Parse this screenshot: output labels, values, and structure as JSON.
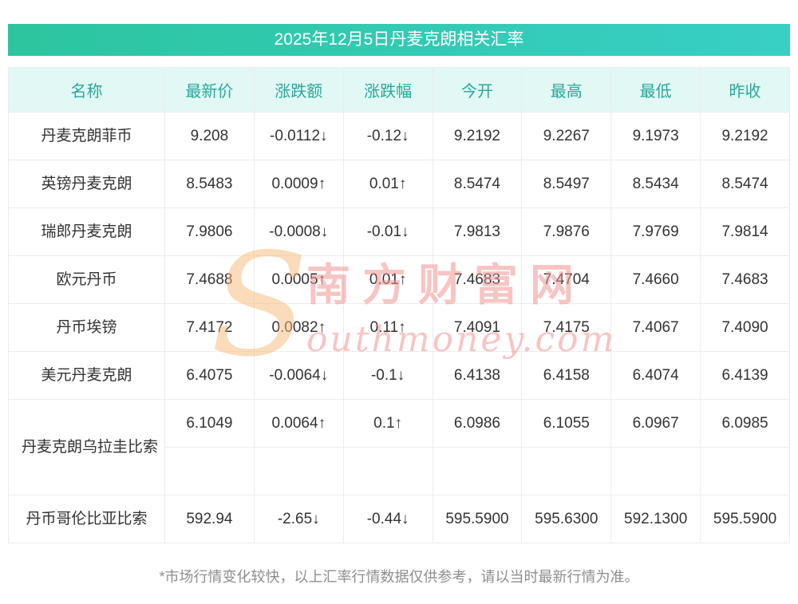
{
  "title": "2025年12月5日丹麦克朗相关汇率",
  "table": {
    "columns": [
      "名称",
      "最新价",
      "涨跌额",
      "涨跌幅",
      "今开",
      "最高",
      "最低",
      "昨收"
    ],
    "rows": [
      {
        "name": "丹麦克朗菲币",
        "latest": "9.208",
        "change": "-0.0112↓",
        "change_pct": "-0.12↓",
        "open": "9.2192",
        "high": "9.2267",
        "low": "9.1973",
        "prev_close": "9.2192",
        "trend": "down",
        "tall": false
      },
      {
        "name": "英镑丹麦克朗",
        "latest": "8.5483",
        "change": "0.0009↑",
        "change_pct": "0.01↑",
        "open": "8.5474",
        "high": "8.5497",
        "low": "8.5434",
        "prev_close": "8.5474",
        "trend": "up",
        "tall": false
      },
      {
        "name": "瑞郎丹麦克朗",
        "latest": "7.9806",
        "change": "-0.0008↓",
        "change_pct": "-0.01↓",
        "open": "7.9813",
        "high": "7.9876",
        "low": "7.9769",
        "prev_close": "7.9814",
        "trend": "down",
        "tall": false
      },
      {
        "name": "欧元丹币",
        "latest": "7.4688",
        "change": "0.0005↑",
        "change_pct": "0.01↑",
        "open": "7.4683",
        "high": "7.4704",
        "low": "7.4660",
        "prev_close": "7.4683",
        "trend": "up",
        "tall": false
      },
      {
        "name": "丹币埃镑",
        "latest": "7.4172",
        "change": "0.0082↑",
        "change_pct": "0.11↑",
        "open": "7.4091",
        "high": "7.4175",
        "low": "7.4067",
        "prev_close": "7.4090",
        "trend": "up",
        "tall": false
      },
      {
        "name": "美元丹麦克朗",
        "latest": "6.4075",
        "change": "-0.0064↓",
        "change_pct": "-0.1↓",
        "open": "6.4138",
        "high": "6.4158",
        "low": "6.4074",
        "prev_close": "6.4139",
        "trend": "down",
        "tall": false
      },
      {
        "name": "丹麦克朗乌拉圭比索",
        "latest": "6.1049",
        "change": "0.0064↑",
        "change_pct": "0.1↑",
        "open": "6.0986",
        "high": "6.1055",
        "low": "6.0967",
        "prev_close": "6.0985",
        "trend": "up",
        "tall": true
      },
      {
        "name": "丹币哥伦比亚比索",
        "latest": "592.94",
        "change": "-2.65↓",
        "change_pct": "-0.44↓",
        "open": "595.5900",
        "high": "595.6300",
        "low": "592.1300",
        "prev_close": "595.5900",
        "trend": "down",
        "tall": false
      }
    ]
  },
  "watermark": {
    "letter": "S",
    "brand": "南方财富网",
    "domain": "outhmoney.com"
  },
  "footnote": "*市场行情变化较快，以上汇率行情数据仅供参考，请以当时最新行情为准。",
  "colors": {
    "up": "#f32b2b",
    "down": "#0ea14b",
    "title_gradient_from": "#2cc59f",
    "title_gradient_to": "#38cfc6",
    "header_bg": "#e2f8f4",
    "header_text": "#2aa79b"
  }
}
